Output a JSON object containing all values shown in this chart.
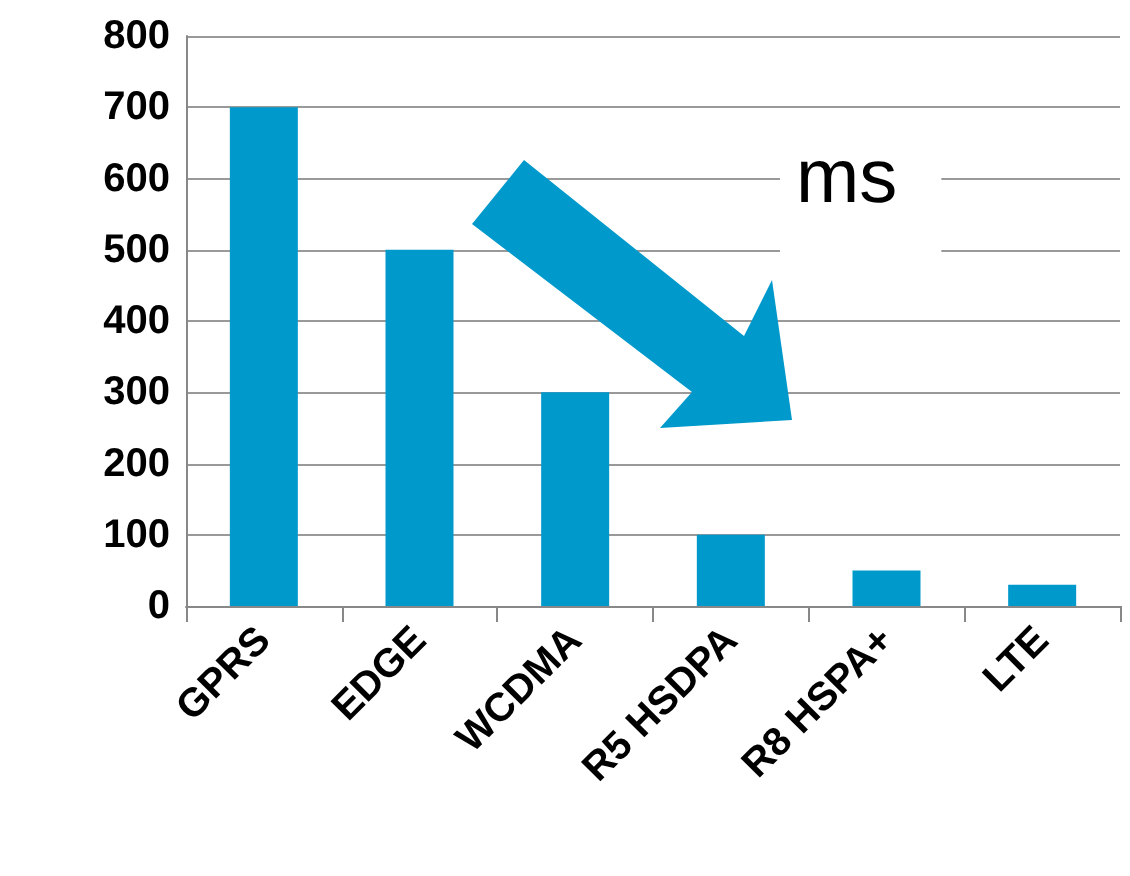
{
  "chart_data": {
    "type": "bar",
    "categories": [
      "GPRS",
      "EDGE",
      "WCDMA",
      "R5 HSDPA",
      "R8 HSPA+",
      "LTE"
    ],
    "values": [
      700,
      500,
      300,
      100,
      50,
      30
    ],
    "color": "#0099cc",
    "ylim": [
      0,
      800
    ],
    "yticks": [
      0,
      100,
      200,
      300,
      400,
      500,
      600,
      700,
      800
    ],
    "grid": "y",
    "annotations": [
      "ms"
    ]
  }
}
